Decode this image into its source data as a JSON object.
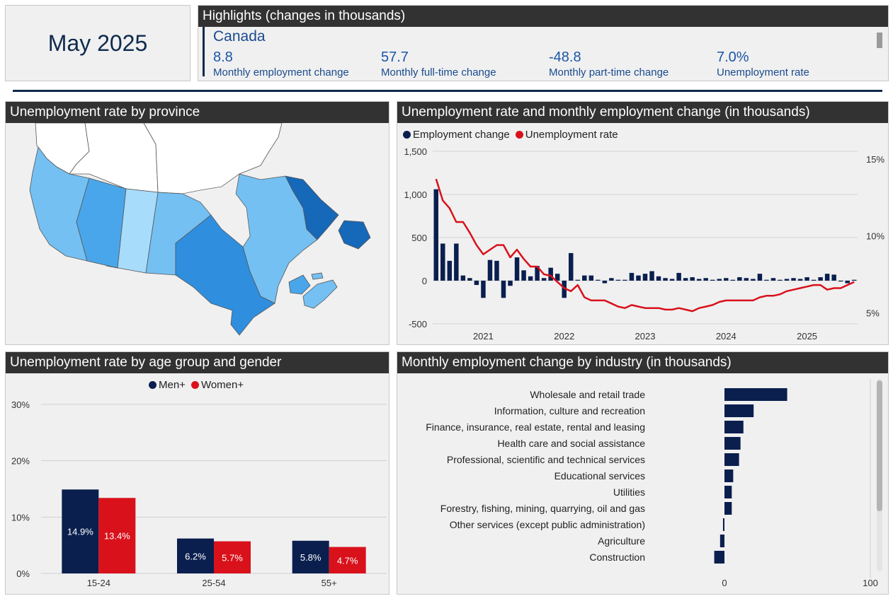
{
  "date_box": {
    "label": "May 2025"
  },
  "highlights": {
    "title": "Highlights (changes in thousands)",
    "region": "Canada",
    "kpis": [
      {
        "value": "8.8",
        "label": "Monthly employment change"
      },
      {
        "value": "57.7",
        "label": "Monthly full-time change"
      },
      {
        "value": "-48.8",
        "label": "Monthly part-time change"
      },
      {
        "value": "7.0%",
        "label": "Unemployment rate"
      }
    ]
  },
  "map": {
    "title": "Unemployment rate by province",
    "colors": {
      "light": "#a8dcfb",
      "mid_light": "#74c0f2",
      "mid": "#4aa6ea",
      "dark": "#2f8fde",
      "darkest": "#1668b8",
      "territory": "#ffffff"
    }
  },
  "colors": {
    "navy": "#0a1f4e",
    "red": "#d9111b"
  },
  "chart_data": [
    {
      "type": "bar+line",
      "title": "Unemployment rate and monthly employment change (in thousands)",
      "legend": "top-left",
      "series": [
        {
          "name": "Employment change",
          "axis": "left",
          "values": [
            1060,
            430,
            230,
            430,
            60,
            30,
            -50,
            -200,
            240,
            230,
            -200,
            -60,
            270,
            120,
            50,
            170,
            30,
            150,
            80,
            -200,
            320,
            10,
            60,
            60,
            10,
            -30,
            30,
            10,
            10,
            90,
            60,
            80,
            110,
            50,
            30,
            20,
            90,
            30,
            40,
            20,
            30,
            10,
            20,
            30,
            10,
            40,
            30,
            20,
            80,
            10,
            30,
            10,
            20,
            30,
            20,
            40,
            10,
            40,
            80,
            70,
            -10,
            -30,
            10
          ]
        },
        {
          "name": "Unemployment rate",
          "axis": "right",
          "values": [
            13.7,
            12.3,
            11.8,
            10.9,
            10.9,
            10.2,
            9.4,
            8.8,
            9.1,
            9.4,
            9.4,
            8.6,
            9.1,
            8.5,
            8.0,
            8.0,
            7.5,
            7.4,
            7.0,
            6.6,
            6.4,
            6.8,
            6.0,
            5.8,
            5.8,
            5.8,
            5.6,
            5.4,
            5.3,
            5.5,
            5.4,
            5.3,
            5.3,
            5.3,
            5.2,
            5.2,
            5.3,
            5.2,
            5.1,
            5.3,
            5.4,
            5.5,
            5.7,
            5.8,
            5.8,
            5.8,
            5.8,
            5.8,
            6.0,
            6.1,
            6.1,
            6.2,
            6.4,
            6.5,
            6.6,
            6.7,
            6.8,
            6.8,
            6.5,
            6.6,
            6.6,
            6.8,
            7.0
          ]
        }
      ],
      "x_ticks": [
        "2021",
        "2022",
        "2023",
        "2024",
        "2025"
      ],
      "y_left": {
        "ticks": [
          1500,
          1000,
          500,
          0,
          -500
        ],
        "tick_labels": [
          "1,500",
          "1,000",
          "500",
          "0",
          "-500"
        ],
        "range": [
          -550,
          1500
        ]
      },
      "y_right": {
        "ticks": [
          15,
          10,
          5
        ],
        "tick_labels": [
          "15%",
          "10%",
          "5%"
        ],
        "range": [
          4.0,
          15.5
        ]
      }
    },
    {
      "type": "bar",
      "title": "Unemployment rate by age group and gender",
      "legend": "top-center",
      "categories": [
        "15-24",
        "25-54",
        "55+"
      ],
      "series": [
        {
          "name": "Men+",
          "values": [
            14.9,
            6.2,
            5.8
          ],
          "labels": [
            "14.9%",
            "6.2%",
            "5.8%"
          ]
        },
        {
          "name": "Women+",
          "values": [
            13.4,
            5.7,
            4.7
          ],
          "labels": [
            "13.4%",
            "5.7%",
            "4.7%"
          ]
        }
      ],
      "y_ticks": [
        0,
        10,
        20,
        30
      ],
      "y_tick_labels": [
        "0%",
        "10%",
        "20%",
        "30%"
      ],
      "ylim": [
        0,
        30
      ]
    },
    {
      "type": "bar",
      "orientation": "horizontal",
      "title": "Monthly employment change by industry (in thousands)",
      "categories": [
        "Wholesale and retail trade",
        "Information, culture and recreation",
        "Finance, insurance, real estate, rental and leasing",
        "Health care and social assistance",
        "Professional, scientific and technical services",
        "Educational services",
        "Utilities",
        "Forestry, fishing, mining, quarrying, oil and gas",
        "Other services (except public administration)",
        "Agriculture",
        "Construction"
      ],
      "values": [
        43,
        20,
        13,
        11,
        10,
        6,
        5,
        5,
        -1,
        -3,
        -7
      ],
      "x_ticks": [
        0,
        100
      ],
      "x_tick_labels": [
        "0",
        "100"
      ],
      "xlim": [
        -10,
        100
      ]
    }
  ]
}
